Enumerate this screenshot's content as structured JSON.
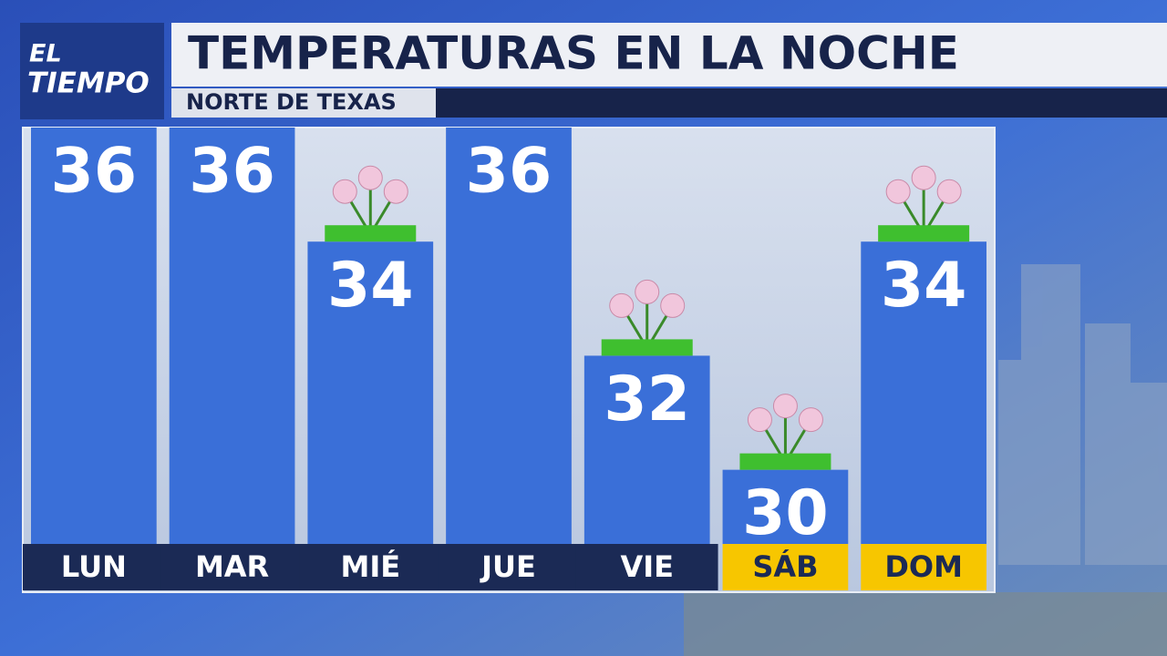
{
  "logo": {
    "line1": "EL",
    "line2": "TIEMPO"
  },
  "chart_data": {
    "type": "bar",
    "title": "TEMPERATURAS EN LA NOCHE",
    "subtitle": "NORTE DE TEXAS",
    "categories": [
      "LUN",
      "MAR",
      "MIÉ",
      "JUE",
      "VIE",
      "SÁB",
      "DOM"
    ],
    "values": [
      36,
      36,
      34,
      36,
      32,
      30,
      34
    ],
    "color": "#3a6fd8",
    "ylim": [
      28.7,
      36
    ],
    "label_color": "#1b2a55",
    "highlight_color": "#f7c600",
    "highlighted": [
      false,
      false,
      false,
      false,
      false,
      true,
      true
    ]
  }
}
